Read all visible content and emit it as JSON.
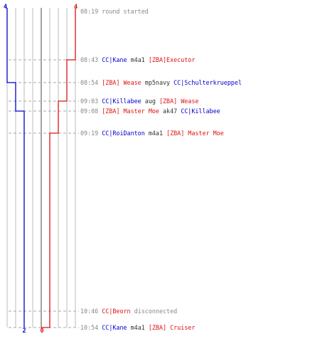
{
  "colors": {
    "team_blue": "#0000cc",
    "team_red": "#dd1111",
    "grid": "#bbbbbb",
    "dash": "#aaaaaa",
    "center_line": "#666666",
    "timestamp": "#888888"
  },
  "scoreboard": {
    "blue_start": "4",
    "red_start": "4",
    "blue_end": "2",
    "red_end": "0"
  },
  "events": [
    {
      "time": "08:19",
      "parts": [
        {
          "t": "round started",
          "c": "gray"
        }
      ]
    },
    {
      "time": "08:43",
      "parts": [
        {
          "t": "CC|Kane",
          "c": "blue"
        },
        {
          "t": " m4a1 ",
          "c": "plain"
        },
        {
          "t": "[ZBA]Executor",
          "c": "red"
        }
      ]
    },
    {
      "time": "08:54",
      "parts": [
        {
          "t": "[ZBA] Wease",
          "c": "red"
        },
        {
          "t": " mp5navy ",
          "c": "plain"
        },
        {
          "t": "CC|Schulterkrueppel",
          "c": "blue"
        }
      ]
    },
    {
      "time": "09:03",
      "parts": [
        {
          "t": "CC|Killabee",
          "c": "blue"
        },
        {
          "t": " aug ",
          "c": "plain"
        },
        {
          "t": "[ZBA] Wease",
          "c": "red"
        }
      ]
    },
    {
      "time": "09:08",
      "parts": [
        {
          "t": "[ZBA] Master Moe",
          "c": "red"
        },
        {
          "t": " ak47 ",
          "c": "plain"
        },
        {
          "t": "CC|Killabee",
          "c": "blue"
        }
      ]
    },
    {
      "time": "09:19",
      "parts": [
        {
          "t": "CC|RoiDanton",
          "c": "blue"
        },
        {
          "t": " m4a1 ",
          "c": "plain"
        },
        {
          "t": "[ZBA] Master Moe",
          "c": "red"
        }
      ]
    },
    {
      "time": "10:46",
      "parts": [
        {
          "t": "CC|Beorn",
          "c": "red"
        },
        {
          "t": " disconnected",
          "c": "gray"
        }
      ]
    },
    {
      "time": "10:54",
      "parts": [
        {
          "t": "CC|Kane",
          "c": "blue"
        },
        {
          "t": " m4a1 ",
          "c": "plain"
        },
        {
          "t": "[ZBA] Cruiser",
          "c": "red"
        }
      ]
    }
  ],
  "chart_data": {
    "type": "line",
    "x": [
      "08:19",
      "08:43",
      "08:54",
      "09:03",
      "09:08",
      "09:19",
      "10:46",
      "10:54"
    ],
    "series": [
      {
        "values": [
          4,
          4,
          3,
          3,
          2,
          2,
          2,
          2
        ]
      },
      {
        "values": [
          4,
          3,
          3,
          2,
          2,
          1,
          1,
          0
        ]
      }
    ],
    "ylim": [
      0,
      8
    ]
  }
}
